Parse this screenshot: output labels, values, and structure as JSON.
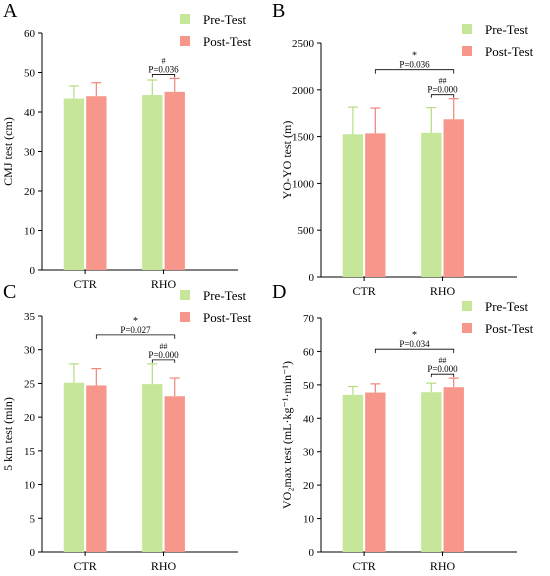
{
  "legend": {
    "pre_label": "Pre-Test",
    "post_label": "Post-Test"
  },
  "colors": {
    "pre": "#c6e79a",
    "post": "#f7978c",
    "pre_err": "#b4dd80",
    "post_err": "#ef8679",
    "axis": "#000000"
  },
  "chart_data": [
    {
      "type": "bar",
      "panel": "A",
      "ylabel": "CMJ test (cm)",
      "categories": [
        "CTR",
        "RHO"
      ],
      "ylim": [
        0,
        60
      ],
      "yticks": [
        0,
        10,
        20,
        30,
        40,
        50,
        60
      ],
      "series": [
        {
          "name": "Pre-Test",
          "values": [
            43.4,
            44.3
          ],
          "errors": [
            3.2,
            3.8
          ]
        },
        {
          "name": "Post-Test",
          "values": [
            44.0,
            45.1
          ],
          "errors": [
            3.4,
            3.4
          ]
        }
      ],
      "annotations": [
        {
          "category": "RHO",
          "symbol": "#",
          "text": "P=0.036"
        }
      ]
    },
    {
      "type": "bar",
      "panel": "B",
      "ylabel": "YO-YO test (m)",
      "categories": [
        "CTR",
        "RHO"
      ],
      "ylim": [
        0,
        2500
      ],
      "yticks": [
        0,
        500,
        1000,
        1500,
        2000,
        2500
      ],
      "series": [
        {
          "name": "Pre-Test",
          "values": [
            1525,
            1540
          ],
          "errors": [
            290,
            270
          ]
        },
        {
          "name": "Post-Test",
          "values": [
            1535,
            1685
          ],
          "errors": [
            270,
            220
          ]
        }
      ],
      "annotations": [
        {
          "category": "RHO",
          "symbol": "##",
          "text": "P=0.000"
        },
        {
          "from": "CTR",
          "to": "RHO",
          "symbol": "*",
          "text": "P=0.036"
        }
      ]
    },
    {
      "type": "bar",
      "panel": "C",
      "ylabel": "5 km test (min)",
      "categories": [
        "CTR",
        "RHO"
      ],
      "ylim": [
        0,
        35
      ],
      "yticks": [
        0,
        5,
        10,
        15,
        20,
        25,
        30,
        35
      ],
      "series": [
        {
          "name": "Pre-Test",
          "values": [
            25.1,
            24.9
          ],
          "errors": [
            2.8,
            3.0
          ]
        },
        {
          "name": "Post-Test",
          "values": [
            24.7,
            23.1
          ],
          "errors": [
            2.5,
            2.7
          ]
        }
      ],
      "annotations": [
        {
          "category": "RHO",
          "symbol": "##",
          "text": "P=0.000"
        },
        {
          "from": "CTR",
          "to": "RHO",
          "symbol": "*",
          "text": "P=0.027"
        }
      ]
    },
    {
      "type": "bar",
      "panel": "D",
      "ylabel": "VO₂max test (mL·kg⁻¹·min⁻¹)",
      "categories": [
        "CTR",
        "RHO"
      ],
      "ylim": [
        0,
        70
      ],
      "yticks": [
        0,
        10,
        20,
        30,
        40,
        50,
        60,
        70
      ],
      "series": [
        {
          "name": "Pre-Test",
          "values": [
            47.0,
            47.8
          ],
          "errors": [
            2.5,
            2.7
          ]
        },
        {
          "name": "Post-Test",
          "values": [
            47.7,
            49.3
          ],
          "errors": [
            2.6,
            2.7
          ]
        }
      ],
      "annotations": [
        {
          "category": "RHO",
          "symbol": "##",
          "text": "P=0.000"
        },
        {
          "from": "CTR",
          "to": "RHO",
          "symbol": "*",
          "text": "P=0.034"
        }
      ]
    }
  ]
}
